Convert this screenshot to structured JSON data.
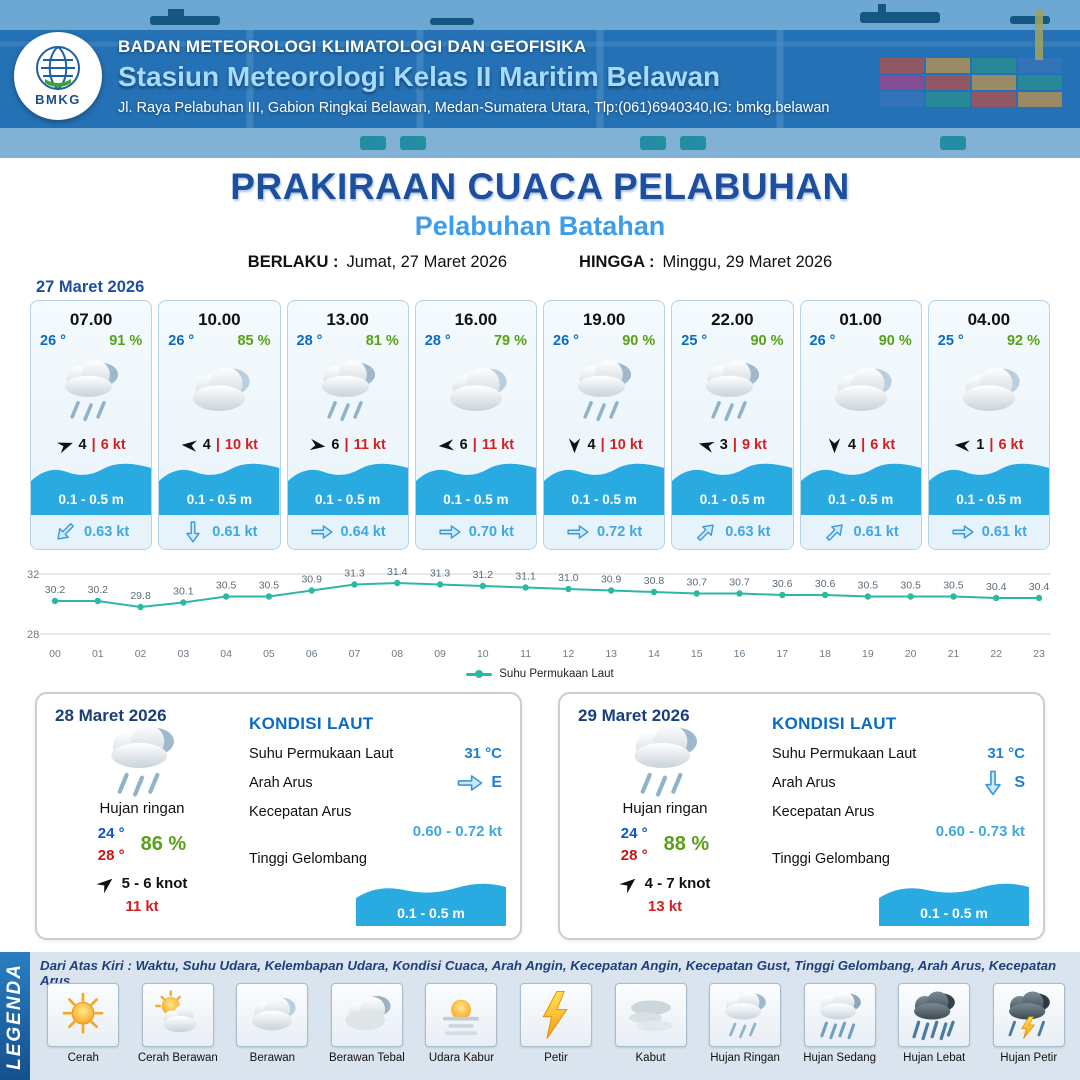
{
  "header": {
    "agency": "BADAN METEOROLOGI KLIMATOLOGI DAN GEOFISIKA",
    "station": "Stasiun Meteorologi Kelas II Maritim Belawan",
    "address": "Jl. Raya Pelabuhan III, Gabion Ringkai Belawan, Medan-Sumatera Utara, Tlp:(061)6940340,IG: bmkg.belawan",
    "logo": "BMKG"
  },
  "title": {
    "main": "PRAKIRAAN CUACA PELABUHAN",
    "port": "Pelabuhan Batahan",
    "berlaku_label": "BERLAKU :",
    "berlaku_value": "Jumat, 27 Maret 2026",
    "hingga_label": "HINGGA :",
    "hingga_value": "Minggu, 29 Maret 2026",
    "forecast_date": "27 Maret 2026"
  },
  "ui": {
    "separator": "|"
  },
  "colors": {
    "accent_blue": "#1d4f9e",
    "port_blue": "#3e9de8",
    "wave_blue": "#29abe2",
    "current_blue": "#3fa8e0",
    "temp_blue": "#0a6bc4",
    "humidity_green": "#58a018",
    "gust_red": "#d42020",
    "chart_teal": "#2bb9a4"
  },
  "hourly": [
    {
      "time": "07.00",
      "temp": "26 °",
      "humidity": "91 %",
      "icon": "rain-light",
      "wind_deg": -20,
      "wind_speed": "4",
      "gust": "6 kt",
      "wave": "0.1 - 0.5 m",
      "current_deg": 135,
      "current": "0.63 kt"
    },
    {
      "time": "10.00",
      "temp": "26 °",
      "humidity": "85 %",
      "icon": "cloud",
      "wind_deg": 185,
      "wind_speed": "4",
      "gust": "10 kt",
      "wave": "0.1 - 0.5 m",
      "current_deg": 90,
      "current": "0.61 kt"
    },
    {
      "time": "13.00",
      "temp": "28 °",
      "humidity": "81 %",
      "icon": "rain-light",
      "wind_deg": 8,
      "wind_speed": "6",
      "gust": "11 kt",
      "wave": "0.1 - 0.5 m",
      "current_deg": 0,
      "current": "0.64 kt"
    },
    {
      "time": "16.00",
      "temp": "28 °",
      "humidity": "79 %",
      "icon": "cloud",
      "wind_deg": 175,
      "wind_speed": "6",
      "gust": "11 kt",
      "wave": "0.1 - 0.5 m",
      "current_deg": 0,
      "current": "0.70 kt"
    },
    {
      "time": "19.00",
      "temp": "26 °",
      "humidity": "90 %",
      "icon": "rain-light",
      "wind_deg": 90,
      "wind_speed": "4",
      "gust": "10 kt",
      "wave": "0.1 - 0.5 m",
      "current_deg": 0,
      "current": "0.72 kt"
    },
    {
      "time": "22.00",
      "temp": "25 °",
      "humidity": "90 %",
      "icon": "rain-light",
      "wind_deg": 195,
      "wind_speed": "3",
      "gust": "9 kt",
      "wave": "0.1 - 0.5 m",
      "current_deg": -45,
      "current": "0.63 kt"
    },
    {
      "time": "01.00",
      "temp": "26 °",
      "humidity": "90 %",
      "icon": "cloud",
      "wind_deg": 90,
      "wind_speed": "4",
      "gust": "6 kt",
      "wave": "0.1 - 0.5 m",
      "current_deg": -45,
      "current": "0.61 kt"
    },
    {
      "time": "04.00",
      "temp": "25 °",
      "humidity": "92 %",
      "icon": "cloud",
      "wind_deg": 185,
      "wind_speed": "1",
      "gust": "6 kt",
      "wave": "0.1 - 0.5 m",
      "current_deg": 0,
      "current": "0.61 kt"
    }
  ],
  "chart_data": {
    "type": "line",
    "x": [
      "00",
      "01",
      "02",
      "03",
      "04",
      "05",
      "06",
      "07",
      "08",
      "09",
      "10",
      "11",
      "12",
      "13",
      "14",
      "15",
      "16",
      "17",
      "18",
      "19",
      "20",
      "21",
      "22",
      "23"
    ],
    "values": [
      30.2,
      30.2,
      29.8,
      30.1,
      30.5,
      30.5,
      30.9,
      31.3,
      31.4,
      31.3,
      31.2,
      31.1,
      31.0,
      30.9,
      30.8,
      30.7,
      30.7,
      30.6,
      30.6,
      30.5,
      30.5,
      30.5,
      30.4,
      30.4
    ],
    "series_name": "Suhu Permukaan Laut",
    "ylim": [
      28,
      32
    ],
    "line_color": "#2bb9a4",
    "grid": true,
    "legend_position": "bottom"
  },
  "daily": [
    {
      "date": "28 Maret 2026",
      "icon": "rain-light",
      "condition": "Hujan ringan",
      "temp_min": "24 °",
      "temp_max": "28 °",
      "humidity": "86 %",
      "wind_deg": -40,
      "wind_range": "5 - 6 knot",
      "gust": "11 kt",
      "sea_title": "KONDISI LAUT",
      "sst_label": "Suhu Permukaan Laut",
      "sst": "31 °C",
      "current_dir_label": "Arah Arus",
      "current_dir": "E",
      "current_dir_deg": 0,
      "current_speed_label": "Kecepatan Arus",
      "current_speed": "0.60 - 0.72 kt",
      "wave_label": "Tinggi Gelombang",
      "wave": "0.1 - 0.5 m"
    },
    {
      "date": "29 Maret 2026",
      "icon": "rain-light",
      "condition": "Hujan ringan",
      "temp_min": "24 °",
      "temp_max": "28 °",
      "humidity": "88 %",
      "wind_deg": -40,
      "wind_range": "4 - 7 knot",
      "gust": "13 kt",
      "sea_title": "KONDISI LAUT",
      "sst_label": "Suhu Permukaan Laut",
      "sst": "31 °C",
      "current_dir_label": "Arah Arus",
      "current_dir": "S",
      "current_dir_deg": 90,
      "current_speed_label": "Kecepatan Arus",
      "current_speed": "0.60 - 0.73 kt",
      "wave_label": "Tinggi Gelombang",
      "wave": "0.1 - 0.5 m"
    }
  ],
  "legend": {
    "title": "LEGENDA",
    "note": "Dari Atas Kiri : Waktu, Suhu Udara, Kelembapan Udara, Kondisi Cuaca, Arah Angin, Kecepatan Angin, Kecepatan Gust, Tinggi Gelombang, Arah Arus, Kecepatan Arus",
    "items": [
      {
        "label": "Cerah",
        "icon": "sun"
      },
      {
        "label": "Cerah Berawan",
        "icon": "sun-cloud"
      },
      {
        "label": "Berawan",
        "icon": "cloud"
      },
      {
        "label": "Berawan Tebal",
        "icon": "cloud-thick"
      },
      {
        "label": "Udara Kabur",
        "icon": "haze"
      },
      {
        "label": "Petir",
        "icon": "bolt"
      },
      {
        "label": "Kabut",
        "icon": "fog"
      },
      {
        "label": "Hujan Ringan",
        "icon": "rain-light"
      },
      {
        "label": "Hujan Sedang",
        "icon": "rain-med"
      },
      {
        "label": "Hujan Lebat",
        "icon": "rain-heavy"
      },
      {
        "label": "Hujan Petir",
        "icon": "rain-thunder"
      }
    ]
  }
}
